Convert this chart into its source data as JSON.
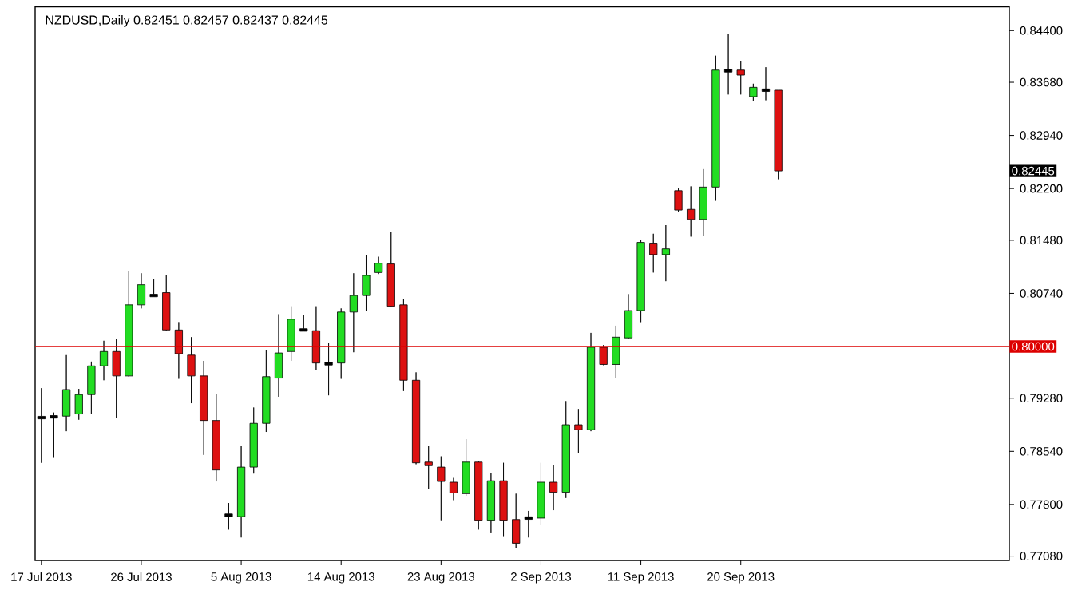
{
  "chart_data": {
    "type": "candlestick",
    "title": "NZDUSD,Daily  0.82451 0.82457 0.82437 0.82445",
    "categories": [
      "17 Jul 2013",
      null,
      null,
      null,
      null,
      null,
      null,
      null,
      "26 Jul 2013",
      null,
      null,
      null,
      null,
      null,
      null,
      null,
      "5 Aug 2013",
      null,
      null,
      null,
      null,
      null,
      null,
      null,
      "14 Aug 2013",
      null,
      null,
      null,
      null,
      null,
      null,
      null,
      "23 Aug 2013",
      null,
      null,
      null,
      null,
      null,
      null,
      null,
      "2 Sep 2013",
      null,
      null,
      null,
      null,
      null,
      null,
      null,
      "11 Sep 2013",
      null,
      null,
      null,
      null,
      null,
      null,
      null,
      "20 Sep 2013",
      null,
      null,
      null,
      null,
      null,
      null,
      null,
      null,
      null,
      null,
      null,
      null,
      null,
      null,
      null,
      null,
      null,
      null,
      null,
      null,
      null
    ],
    "ohlc": [
      [
        0.7901,
        0.7942,
        0.7838,
        0.7901
      ],
      [
        0.7902,
        0.7908,
        0.7845,
        0.7902
      ],
      [
        0.7903,
        0.7988,
        0.7882,
        0.794
      ],
      [
        0.7906,
        0.7941,
        0.7898,
        0.7933
      ],
      [
        0.7933,
        0.7979,
        0.7906,
        0.7973
      ],
      [
        0.7973,
        0.8008,
        0.7953,
        0.7993
      ],
      [
        0.7993,
        0.801,
        0.7901,
        0.7959
      ],
      [
        0.7959,
        0.8105,
        0.7958,
        0.8058
      ],
      [
        0.8058,
        0.8102,
        0.8053,
        0.8086
      ],
      [
        0.8071,
        0.8094,
        0.8069,
        0.8071
      ],
      [
        0.8075,
        0.8099,
        0.8022,
        0.8023
      ],
      [
        0.8023,
        0.8034,
        0.7955,
        0.799
      ],
      [
        0.7988,
        0.8013,
        0.7921,
        0.7959
      ],
      [
        0.7959,
        0.798,
        0.7849,
        0.7897
      ],
      [
        0.7897,
        0.7934,
        0.7812,
        0.7828
      ],
      [
        0.7765,
        0.7782,
        0.7745,
        0.7765
      ],
      [
        0.7763,
        0.7861,
        0.7734,
        0.7832
      ],
      [
        0.7832,
        0.7915,
        0.7823,
        0.7893
      ],
      [
        0.7893,
        0.7995,
        0.7881,
        0.7958
      ],
      [
        0.7956,
        0.8045,
        0.793,
        0.7991
      ],
      [
        0.7993,
        0.8056,
        0.798,
        0.8038
      ],
      [
        0.8023,
        0.8044,
        0.8022,
        0.8023
      ],
      [
        0.8022,
        0.8056,
        0.7967,
        0.7977
      ],
      [
        0.7976,
        0.8005,
        0.7932,
        0.7976
      ],
      [
        0.7977,
        0.8053,
        0.7955,
        0.8048
      ],
      [
        0.8048,
        0.8102,
        0.7992,
        0.8071
      ],
      [
        0.8071,
        0.8127,
        0.8049,
        0.8099
      ],
      [
        0.8103,
        0.8125,
        0.8101,
        0.8116
      ],
      [
        0.8115,
        0.816,
        0.8055,
        0.8056
      ],
      [
        0.8058,
        0.8066,
        0.7938,
        0.7953
      ],
      [
        0.7953,
        0.7964,
        0.7836,
        0.7838
      ],
      [
        0.7839,
        0.7861,
        0.7801,
        0.7834
      ],
      [
        0.7832,
        0.7847,
        0.7758,
        0.7812
      ],
      [
        0.7811,
        0.7817,
        0.7786,
        0.7796
      ],
      [
        0.7795,
        0.7871,
        0.7792,
        0.7839
      ],
      [
        0.7839,
        0.784,
        0.7745,
        0.7758
      ],
      [
        0.7758,
        0.7824,
        0.7741,
        0.7813
      ],
      [
        0.7813,
        0.7838,
        0.7736,
        0.7758
      ],
      [
        0.7759,
        0.7795,
        0.7719,
        0.7726
      ],
      [
        0.7761,
        0.7771,
        0.7734,
        0.7761
      ],
      [
        0.7761,
        0.7838,
        0.7751,
        0.7811
      ],
      [
        0.7811,
        0.7835,
        0.7772,
        0.7797
      ],
      [
        0.7797,
        0.7924,
        0.7789,
        0.7891
      ],
      [
        0.7891,
        0.7913,
        0.7852,
        0.7884
      ],
      [
        0.7884,
        0.8019,
        0.7882,
        0.7999
      ],
      [
        0.7999,
        0.8002,
        0.7974,
        0.7975
      ],
      [
        0.7975,
        0.8029,
        0.7956,
        0.8013
      ],
      [
        0.8012,
        0.8073,
        0.801,
        0.805
      ],
      [
        0.805,
        0.8148,
        0.8034,
        0.8145
      ],
      [
        0.8144,
        0.8157,
        0.8103,
        0.8128
      ],
      [
        0.8128,
        0.8169,
        0.8091,
        0.8136
      ],
      [
        0.8217,
        0.822,
        0.8188,
        0.819
      ],
      [
        0.8191,
        0.8223,
        0.8153,
        0.8177
      ],
      [
        0.8177,
        0.8247,
        0.8154,
        0.8222
      ],
      [
        0.8222,
        0.8405,
        0.8203,
        0.8385
      ],
      [
        0.8384,
        0.8435,
        0.8351,
        0.8384
      ],
      [
        0.8385,
        0.8398,
        0.8351,
        0.8378
      ],
      [
        0.8348,
        0.8366,
        0.8342,
        0.8361
      ],
      [
        0.8357,
        0.8389,
        0.8343,
        0.8357
      ],
      [
        0.8357,
        0.8357,
        0.8233,
        0.82445
      ],
      null,
      null,
      null,
      null,
      null,
      null,
      null,
      null,
      null,
      null,
      null,
      null,
      null,
      null,
      null,
      null,
      null,
      null
    ],
    "colors": [
      "#000000",
      "#000000",
      "#22dd22",
      "#22dd22",
      "#22dd22",
      "#22dd22",
      "#dd1111",
      "#22dd22",
      "#22dd22",
      "#000000",
      "#dd1111",
      "#dd1111",
      "#dd1111",
      "#dd1111",
      "#dd1111",
      "#000000",
      "#22dd22",
      "#22dd22",
      "#22dd22",
      "#22dd22",
      "#22dd22",
      "#000000",
      "#dd1111",
      "#000000",
      "#22dd22",
      "#22dd22",
      "#22dd22",
      "#22dd22",
      "#dd1111",
      "#dd1111",
      "#dd1111",
      "#dd1111",
      "#dd1111",
      "#dd1111",
      "#22dd22",
      "#dd1111",
      "#22dd22",
      "#dd1111",
      "#dd1111",
      "#000000",
      "#22dd22",
      "#dd1111",
      "#22dd22",
      "#dd1111",
      "#22dd22",
      "#dd1111",
      "#22dd22",
      "#22dd22",
      "#22dd22",
      "#dd1111",
      "#22dd22",
      "#dd1111",
      "#dd1111",
      "#22dd22",
      "#22dd22",
      "#000000",
      "#dd1111",
      "#22dd22",
      "#000000",
      "#dd1111",
      null,
      null,
      null,
      null,
      null,
      null,
      null,
      null,
      null,
      null,
      null,
      null,
      null,
      null,
      null,
      null,
      null,
      null
    ],
    "ylim": [
      0.7702,
      0.8473
    ],
    "yticks": [
      {
        "value": 0.7708,
        "label": "0.77080"
      },
      {
        "value": 0.778,
        "label": "0.77800"
      },
      {
        "value": 0.7854,
        "label": "0.78540"
      },
      {
        "value": 0.7928,
        "label": "0.79280"
      },
      {
        "value": 0.8074,
        "label": "0.80740"
      },
      {
        "value": 0.8148,
        "label": "0.81480"
      },
      {
        "value": 0.822,
        "label": "0.82200"
      },
      {
        "value": 0.8294,
        "label": "0.82940"
      },
      {
        "value": 0.8368,
        "label": "0.83680"
      },
      {
        "value": 0.844,
        "label": "0.84400"
      }
    ],
    "ref_lines": [
      {
        "axis": "y",
        "value": 0.8,
        "label": "0.80000",
        "color": "#dd0000"
      }
    ],
    "annotations": [
      "0.82445"
    ]
  }
}
